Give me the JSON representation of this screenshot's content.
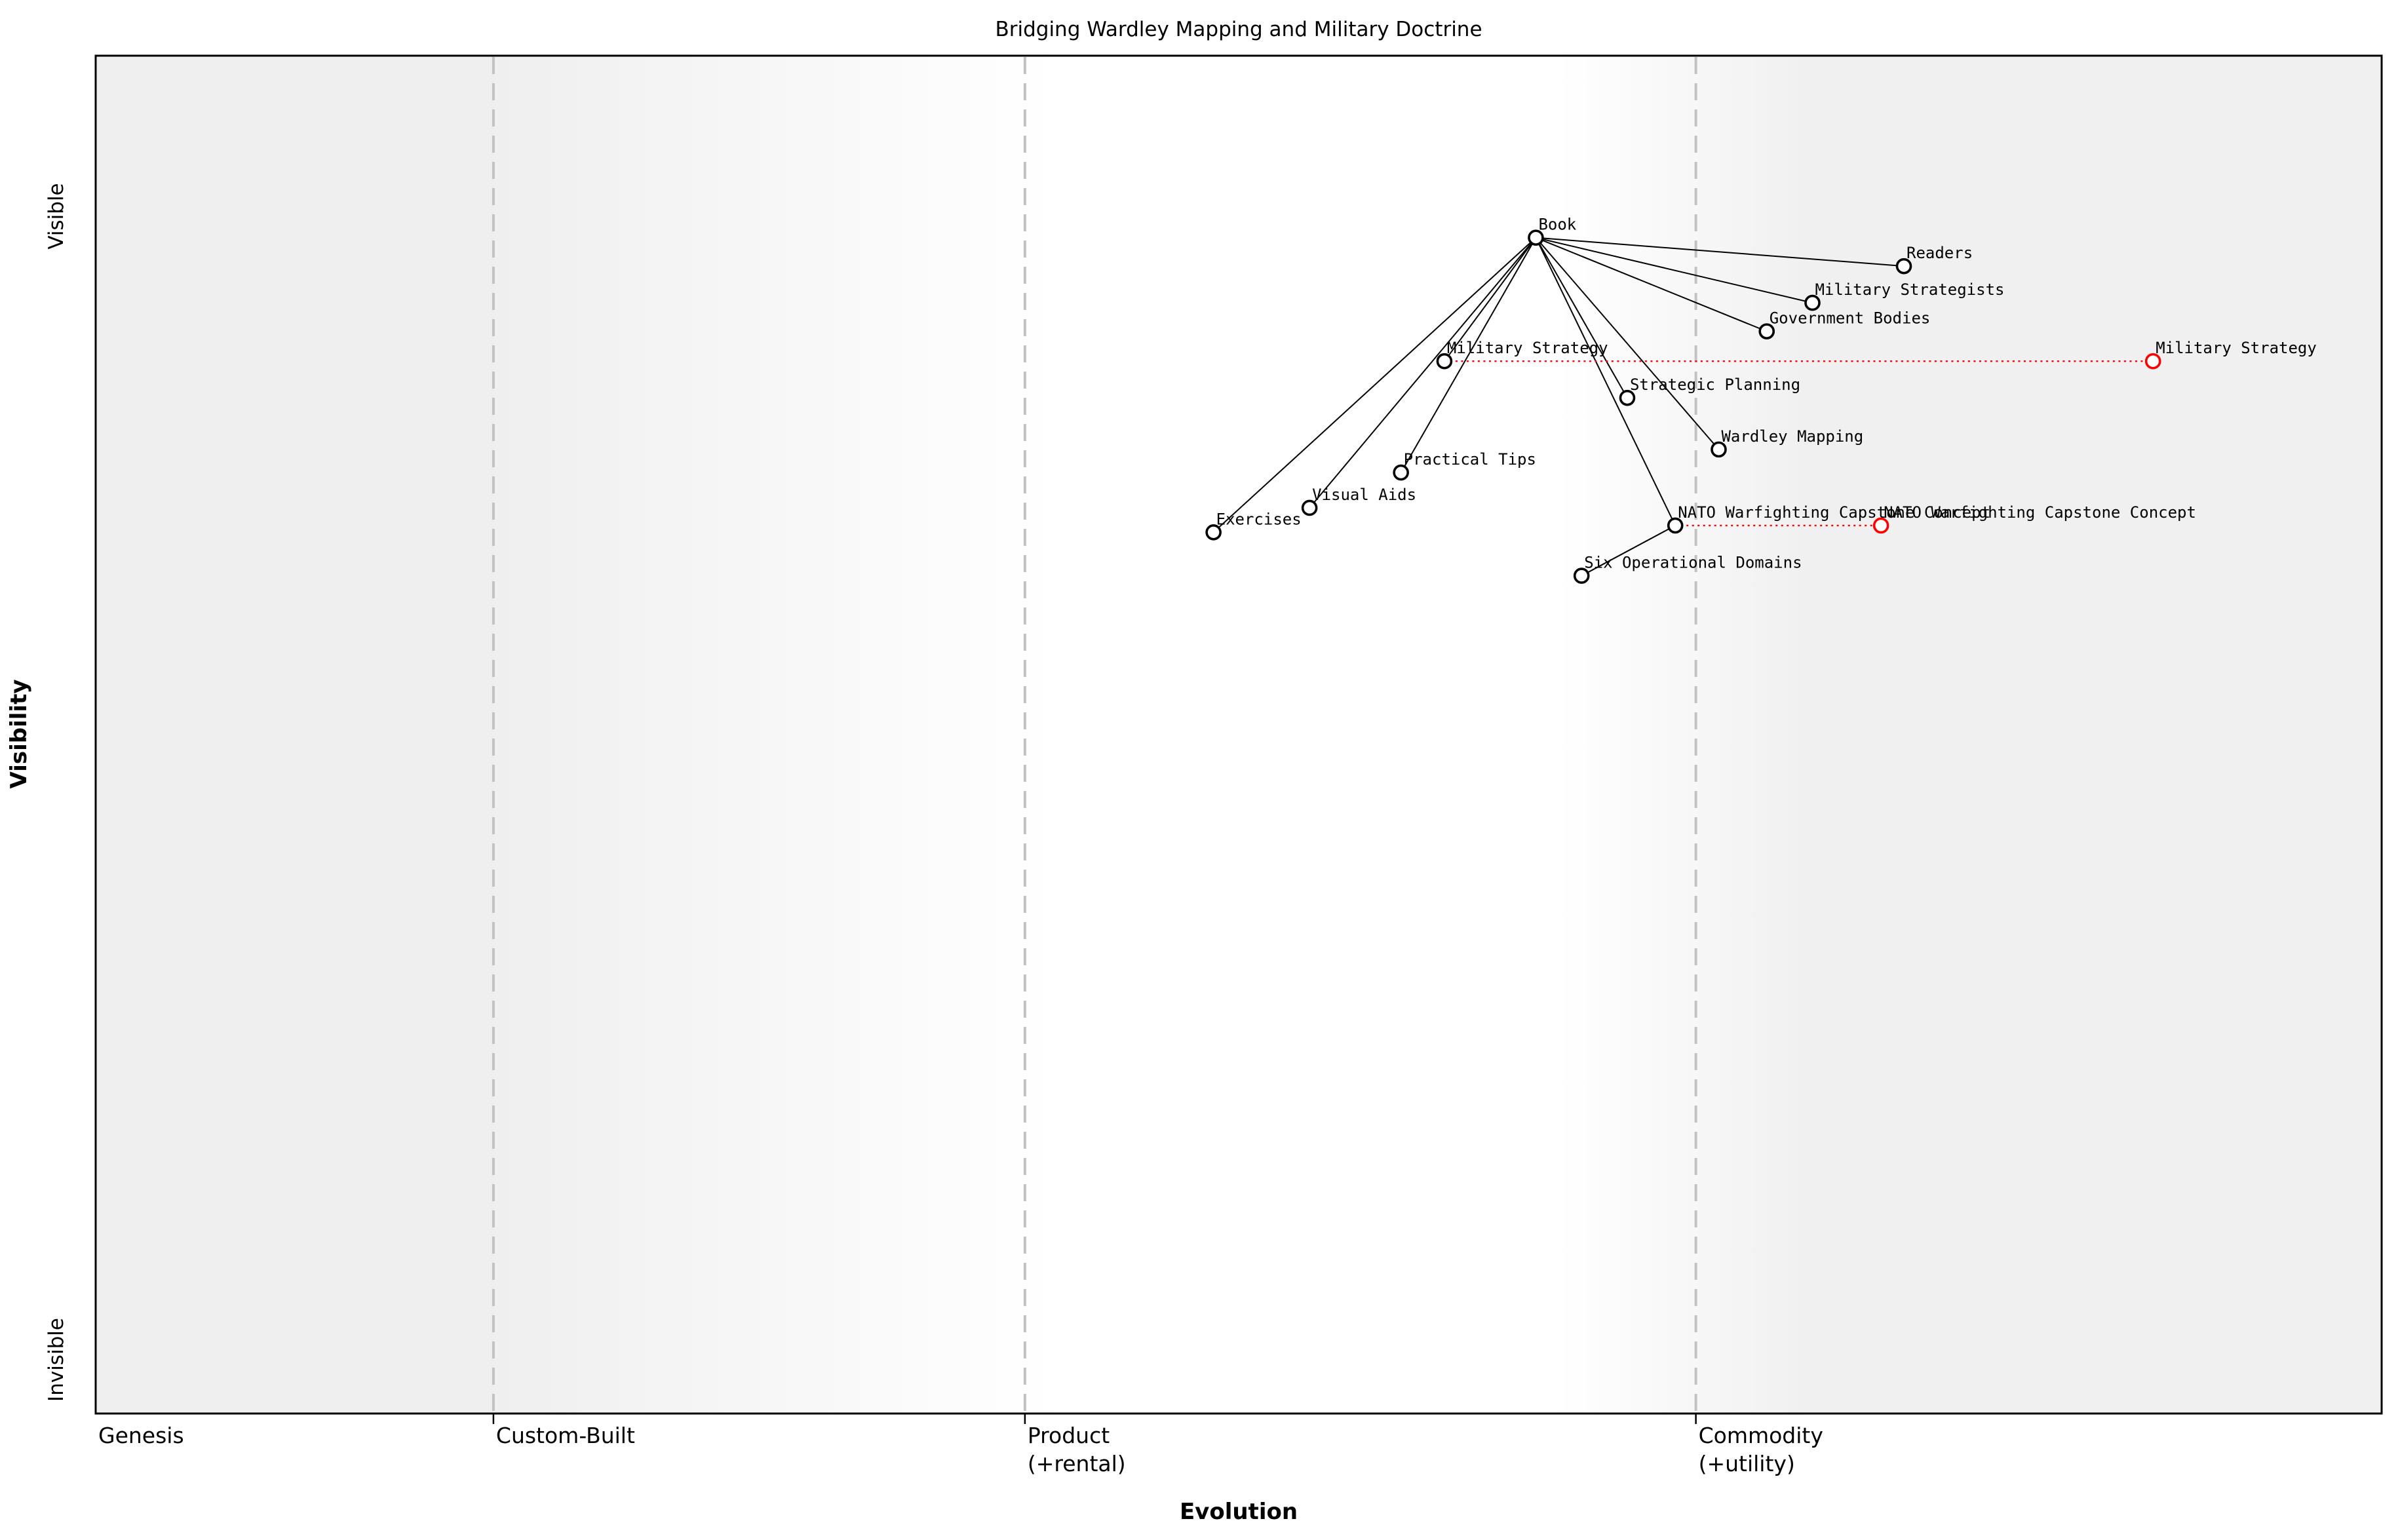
{
  "chart_data": {
    "type": "scatter",
    "title": "Bridging Wardley Mapping and Military Doctrine",
    "xlabel": "Evolution",
    "ylabel": "Visibility",
    "xlim": [
      0,
      1
    ],
    "ylim": [
      0,
      1
    ],
    "grid": "dashed vertical lines at evolution stage boundaries",
    "legend": "none",
    "x_tick_positions": [
      0.0,
      0.174,
      0.4065,
      0.7
    ],
    "x_tick_labels": [
      [
        "Genesis"
      ],
      [
        "Custom-Built"
      ],
      [
        "Product",
        "(+rental)"
      ],
      [
        "Commodity",
        "(+utility)"
      ]
    ],
    "y_tick_top": "Visible",
    "y_tick_top_position": 0.882,
    "y_tick_bottom": "Invisible",
    "y_tick_bottom_position": 0.04,
    "nodes": [
      {
        "id": "book",
        "label": "Book",
        "evolution": 0.63,
        "visibility": 0.866
      },
      {
        "id": "readers",
        "label": "Readers",
        "evolution": 0.791,
        "visibility": 0.845
      },
      {
        "id": "military-strategists",
        "label": "Military Strategists",
        "evolution": 0.751,
        "visibility": 0.818
      },
      {
        "id": "government-bodies",
        "label": "Government Bodies",
        "evolution": 0.731,
        "visibility": 0.797
      },
      {
        "id": "military-strategy",
        "label": "Military Strategy",
        "evolution": 0.59,
        "visibility": 0.775
      },
      {
        "id": "strategic-planning",
        "label": "Strategic Planning",
        "evolution": 0.67,
        "visibility": 0.748
      },
      {
        "id": "wardley-mapping",
        "label": "Wardley Mapping",
        "evolution": 0.71,
        "visibility": 0.71
      },
      {
        "id": "practical-tips",
        "label": "Practical Tips",
        "evolution": 0.571,
        "visibility": 0.693
      },
      {
        "id": "visual-aids",
        "label": "Visual Aids",
        "evolution": 0.531,
        "visibility": 0.667
      },
      {
        "id": "exercises",
        "label": "Exercises",
        "evolution": 0.489,
        "visibility": 0.649
      },
      {
        "id": "nato-warfighting-capstone-concept",
        "label": "NATO Warfighting Capstone Concept",
        "evolution": 0.691,
        "visibility": 0.654
      },
      {
        "id": "six-operational-domains",
        "label": "Six Operational Domains",
        "evolution": 0.65,
        "visibility": 0.617
      }
    ],
    "edges": [
      [
        "book",
        "readers"
      ],
      [
        "book",
        "military-strategists"
      ],
      [
        "book",
        "government-bodies"
      ],
      [
        "book",
        "military-strategy"
      ],
      [
        "book",
        "strategic-planning"
      ],
      [
        "book",
        "wardley-mapping"
      ],
      [
        "book",
        "practical-tips"
      ],
      [
        "book",
        "visual-aids"
      ],
      [
        "book",
        "exercises"
      ],
      [
        "book",
        "nato-warfighting-capstone-concept"
      ],
      [
        "nato-warfighting-capstone-concept",
        "six-operational-domains"
      ]
    ],
    "evolve": [
      {
        "node": "military-strategy",
        "to_evolution": 0.9
      },
      {
        "node": "nato-warfighting-capstone-concept",
        "to_evolution": 0.781
      }
    ]
  },
  "style": {
    "node_fill": "#ffffff",
    "node_stroke": "#000000",
    "evolved_node_stroke": "#ff0000",
    "edge_color": "#000000",
    "evolve_line_color": "#ff0000",
    "grid_color": "#c2c2c2",
    "border_color": "#000000",
    "text_color": "#000000",
    "background_left": "#efefef",
    "background_mid": "#ffffff",
    "background_right": "#f0f0f0"
  }
}
